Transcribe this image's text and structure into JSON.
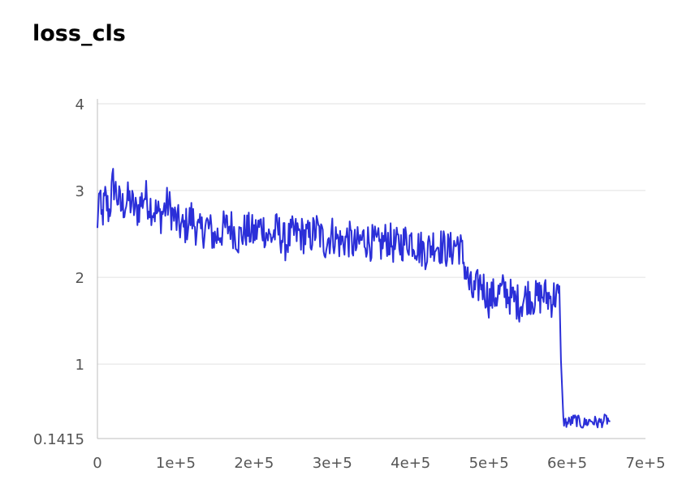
{
  "chart_data": {
    "type": "line",
    "title": "loss_cls",
    "xlabel": "",
    "ylabel": "",
    "xlim": [
      0,
      700000
    ],
    "ylim": [
      0.1415,
      4
    ],
    "grid": true,
    "series_color": "#2b2fd8",
    "x_ticks": [
      {
        "value": 0,
        "label": "0"
      },
      {
        "value": 100000,
        "label": "1e+5"
      },
      {
        "value": 200000,
        "label": "2e+5"
      },
      {
        "value": 300000,
        "label": "3e+5"
      },
      {
        "value": 400000,
        "label": "4e+5"
      },
      {
        "value": 500000,
        "label": "5e+5"
      },
      {
        "value": 600000,
        "label": "6e+5"
      },
      {
        "value": 700000,
        "label": "7e+5"
      }
    ],
    "y_ticks": [
      {
        "value": 0.1415,
        "label": "0.1415"
      },
      {
        "value": 1,
        "label": "1"
      },
      {
        "value": 2,
        "label": "2"
      },
      {
        "value": 3,
        "label": "3"
      },
      {
        "value": 4,
        "label": "4"
      }
    ],
    "series": [
      {
        "x": [
          0,
          2000,
          5000,
          10000,
          15000,
          20000,
          30000,
          40000,
          50000,
          60000,
          70000,
          80000,
          90000,
          100000,
          110000,
          120000,
          130000,
          140000,
          150000,
          160000,
          170000,
          180000,
          190000,
          200000,
          210000,
          220000,
          230000,
          240000,
          250000,
          260000,
          270000,
          280000,
          290000,
          300000,
          310000,
          320000,
          330000,
          340000,
          350000,
          360000,
          370000,
          380000,
          390000,
          400000,
          410000,
          420000,
          430000,
          440000,
          450000,
          460000,
          465000,
          470000,
          475000,
          480000,
          490000,
          500000,
          510000,
          520000,
          530000,
          540000,
          550000,
          560000,
          570000,
          580000,
          585000,
          590000,
          592000,
          595000,
          600000,
          610000,
          620000,
          630000,
          640000,
          650000,
          655000
        ],
        "y": [
          2.5,
          3.05,
          2.65,
          2.9,
          2.75,
          3.1,
          2.8,
          2.9,
          2.75,
          2.95,
          2.8,
          2.7,
          2.85,
          2.65,
          2.55,
          2.7,
          2.5,
          2.6,
          2.45,
          2.55,
          2.6,
          2.45,
          2.55,
          2.5,
          2.6,
          2.45,
          2.55,
          2.4,
          2.5,
          2.5,
          2.45,
          2.55,
          2.4,
          2.5,
          2.4,
          2.45,
          2.35,
          2.45,
          2.4,
          2.35,
          2.45,
          2.35,
          2.4,
          2.45,
          2.35,
          2.3,
          2.4,
          2.35,
          2.3,
          2.4,
          2.3,
          2.1,
          1.9,
          1.8,
          1.95,
          1.75,
          1.8,
          1.85,
          1.75,
          1.7,
          1.8,
          1.75,
          1.8,
          1.75,
          1.8,
          1.75,
          1.2,
          0.35,
          0.32,
          0.36,
          0.31,
          0.35,
          0.32,
          0.36,
          0.34
        ]
      }
    ]
  }
}
